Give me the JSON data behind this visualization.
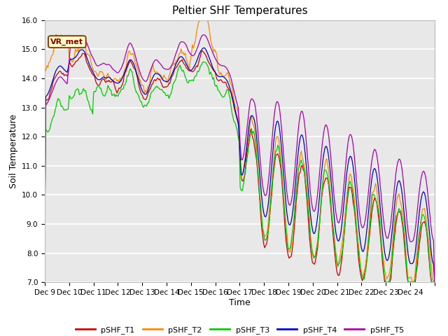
{
  "title": "Peltier SHF Temperatures",
  "xlabel": "Time",
  "ylabel": "Soil Temperature",
  "ylim": [
    7.0,
    16.0
  ],
  "yticks": [
    7.0,
    8.0,
    9.0,
    10.0,
    11.0,
    12.0,
    13.0,
    14.0,
    15.0,
    16.0
  ],
  "x_labels": [
    "Dec 9",
    "Dec 10",
    "Dec 11",
    "Dec 12",
    "Dec 13",
    "Dec 14",
    "Dec 15",
    "Dec 16",
    "Dec 17",
    "Dec 18",
    "Dec 19",
    "Dec 20",
    "Dec 21",
    "Dec 22",
    "Dec 23",
    "Dec 24"
  ],
  "series_colors": [
    "#cc0000",
    "#ff8800",
    "#00cc00",
    "#0000cc",
    "#aa00aa"
  ],
  "series_names": [
    "pSHF_T1",
    "pSHF_T2",
    "pSHF_T3",
    "pSHF_T4",
    "pSHF_T5"
  ],
  "annotation_text": "VR_met",
  "background_color": "#ffffff",
  "plot_bg_color": "#e8e8e8",
  "title_fontsize": 11,
  "axis_label_fontsize": 9,
  "tick_fontsize": 7.5
}
